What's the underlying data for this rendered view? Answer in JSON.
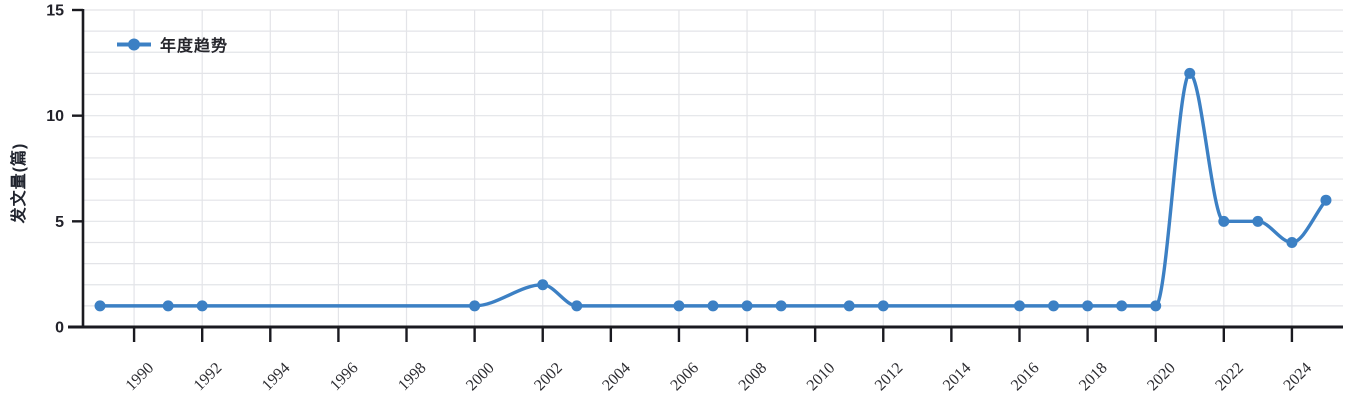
{
  "chart_data": {
    "type": "line",
    "title": "",
    "legend_label": "年度趋势",
    "ylabel": "发文量(篇)",
    "smooth": true,
    "legend_position": "top-left",
    "x_label_rotation": -45,
    "x_range": [
      1989,
      2025
    ],
    "x_tick_labels": [
      "1990",
      "1992",
      "1994",
      "1996",
      "1998",
      "2000",
      "2002",
      "2004",
      "2006",
      "2008",
      "2010",
      "2012",
      "2014",
      "2016",
      "2018",
      "2020",
      "2022",
      "2024"
    ],
    "ylim": [
      0,
      15
    ],
    "y_ticks": [
      0,
      5,
      10,
      15
    ],
    "y_minor_grid_step": 1,
    "series": [
      {
        "name": "年度趋势",
        "points": [
          [
            1989,
            1
          ],
          [
            1991,
            1
          ],
          [
            1992,
            1
          ],
          [
            2000,
            1
          ],
          [
            2002,
            2
          ],
          [
            2003,
            1
          ],
          [
            2006,
            1
          ],
          [
            2007,
            1
          ],
          [
            2008,
            1
          ],
          [
            2009,
            1
          ],
          [
            2011,
            1
          ],
          [
            2012,
            1
          ],
          [
            2016,
            1
          ],
          [
            2017,
            1
          ],
          [
            2018,
            1
          ],
          [
            2019,
            1
          ],
          [
            2020,
            1
          ],
          [
            2021,
            12
          ],
          [
            2022,
            5
          ],
          [
            2023,
            5
          ],
          [
            2024,
            4
          ],
          [
            2025,
            6
          ]
        ]
      }
    ],
    "colors": {
      "line": "#3c80c4",
      "marker": "#3c80c4",
      "grid": "#e3e4e8",
      "axis": "#1a1a20",
      "tick_label": "#2b2b30",
      "legend_text": "#26262c"
    }
  }
}
